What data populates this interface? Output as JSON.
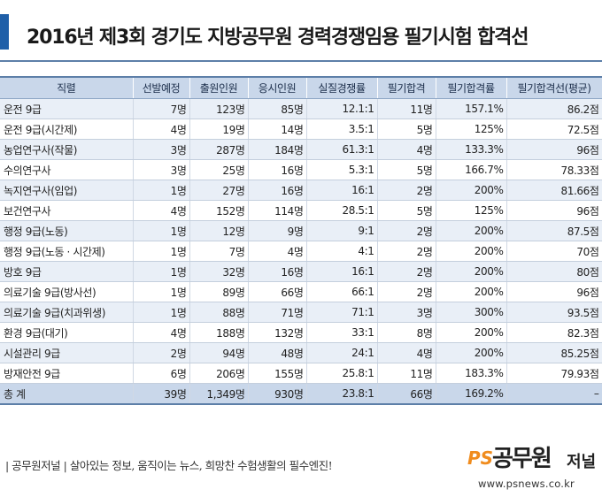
{
  "title": "2016년 제3회 경기도 지방공무원 경력경쟁임용 필기시험 합격선",
  "watermark": "공무원저널",
  "table": {
    "headers": [
      "직렬",
      "선발예정",
      "출원인원",
      "응시인원",
      "실질경쟁률",
      "필기합격",
      "필기합격률",
      "필기합격선(평균)"
    ],
    "rows": [
      [
        "운전 9급",
        "7명",
        "123명",
        "85명",
        "12.1:1",
        "11명",
        "157.1%",
        "86.2점"
      ],
      [
        "운전 9급(시간제)",
        "4명",
        "19명",
        "14명",
        "3.5:1",
        "5명",
        "125%",
        "72.5점"
      ],
      [
        "농업연구사(작물)",
        "3명",
        "287명",
        "184명",
        "61.3:1",
        "4명",
        "133.3%",
        "96점"
      ],
      [
        "수의연구사",
        "3명",
        "25명",
        "16명",
        "5.3:1",
        "5명",
        "166.7%",
        "78.33점"
      ],
      [
        "녹지연구사(임업)",
        "1명",
        "27명",
        "16명",
        "16:1",
        "2명",
        "200%",
        "81.66점"
      ],
      [
        "보건연구사",
        "4명",
        "152명",
        "114명",
        "28.5:1",
        "5명",
        "125%",
        "96점"
      ],
      [
        "행정 9급(노동)",
        "1명",
        "12명",
        "9명",
        "9:1",
        "2명",
        "200%",
        "87.5점"
      ],
      [
        "행정 9급(노동 · 시간제)",
        "1명",
        "7명",
        "4명",
        "4:1",
        "2명",
        "200%",
        "70점"
      ],
      [
        "방호 9급",
        "1명",
        "32명",
        "16명",
        "16:1",
        "2명",
        "200%",
        "80점"
      ],
      [
        "의료기술 9급(방사선)",
        "1명",
        "89명",
        "66명",
        "66:1",
        "2명",
        "200%",
        "96점"
      ],
      [
        "의료기술 9급(치과위생)",
        "1명",
        "88명",
        "71명",
        "71:1",
        "3명",
        "300%",
        "93.5점"
      ],
      [
        "환경 9급(대기)",
        "4명",
        "188명",
        "132명",
        "33:1",
        "8명",
        "200%",
        "82.3점"
      ],
      [
        "시설관리 9급",
        "2명",
        "94명",
        "48명",
        "24:1",
        "4명",
        "200%",
        "85.25점"
      ],
      [
        "방재안전 9급",
        "6명",
        "206명",
        "155명",
        "25.8:1",
        "11명",
        "183.3%",
        "79.93점"
      ]
    ],
    "total": [
      "총 계",
      "39명",
      "1,349명",
      "930명",
      "23.8:1",
      "66명",
      "169.2%",
      "–"
    ]
  },
  "footer": {
    "tagline": "| 공무원저널 | 살아있는 정보, 움직이는 뉴스, 희망찬 수험생활의 필수엔진!",
    "logo_ps": "PS",
    "logo_name": "공무원",
    "logo_sub": "저널",
    "url": "www.psnews.co.kr"
  },
  "colors": {
    "accent": "#1f5fa8",
    "header_fill": "#c9d7ea",
    "row_alt": "#e9eff7",
    "logo_orange": "#f08c1e"
  }
}
